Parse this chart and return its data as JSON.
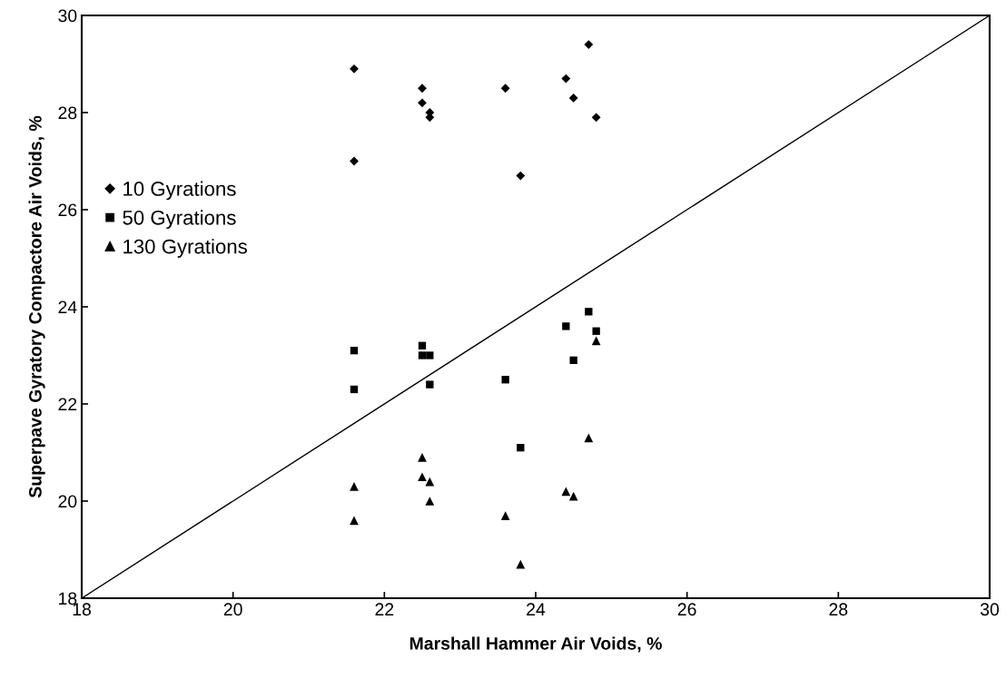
{
  "chart_data": {
    "type": "scatter",
    "xlabel": "Marshall Hammer Air Voids, %",
    "ylabel": "Superpave Gyratory Compactore Air Voids, %",
    "xlim": [
      18,
      30
    ],
    "ylim": [
      18,
      30
    ],
    "xticks": [
      18,
      20,
      22,
      24,
      26,
      28,
      30
    ],
    "yticks": [
      18,
      20,
      22,
      24,
      26,
      28,
      30
    ],
    "grid": false,
    "legend": "center left",
    "series": [
      {
        "name": "10 Gyrations",
        "color": "#000000",
        "marker": "diamond",
        "x": [
          21.6,
          21.6,
          22.5,
          22.5,
          22.6,
          22.6,
          23.6,
          23.8,
          24.4,
          24.5,
          24.7,
          24.8
        ],
        "values": [
          28.9,
          27.0,
          28.5,
          28.2,
          28.0,
          27.9,
          28.5,
          26.7,
          28.7,
          28.3,
          29.4,
          27.9
        ]
      },
      {
        "name": "50 Gyrations",
        "color": "#000000",
        "marker": "square",
        "x": [
          21.6,
          21.6,
          22.5,
          22.5,
          22.6,
          22.6,
          23.6,
          23.8,
          24.4,
          24.5,
          24.7,
          24.8
        ],
        "values": [
          23.1,
          22.3,
          23.2,
          23.0,
          23.0,
          22.4,
          22.5,
          21.1,
          23.6,
          22.9,
          23.9,
          23.5
        ]
      },
      {
        "name": "130 Gyrations",
        "color": "#000000",
        "marker": "triangle",
        "x": [
          21.6,
          21.6,
          22.5,
          22.5,
          22.6,
          22.6,
          23.6,
          23.8,
          24.4,
          24.5,
          24.7,
          24.8
        ],
        "values": [
          20.3,
          19.6,
          20.9,
          20.5,
          20.4,
          20.0,
          19.7,
          18.7,
          20.2,
          20.1,
          21.3,
          23.3
        ]
      },
      {
        "type": "line",
        "color": "#000000",
        "marker": "none",
        "line_style": "solid",
        "x": [
          18,
          30
        ],
        "values": [
          18,
          30
        ]
      }
    ]
  }
}
